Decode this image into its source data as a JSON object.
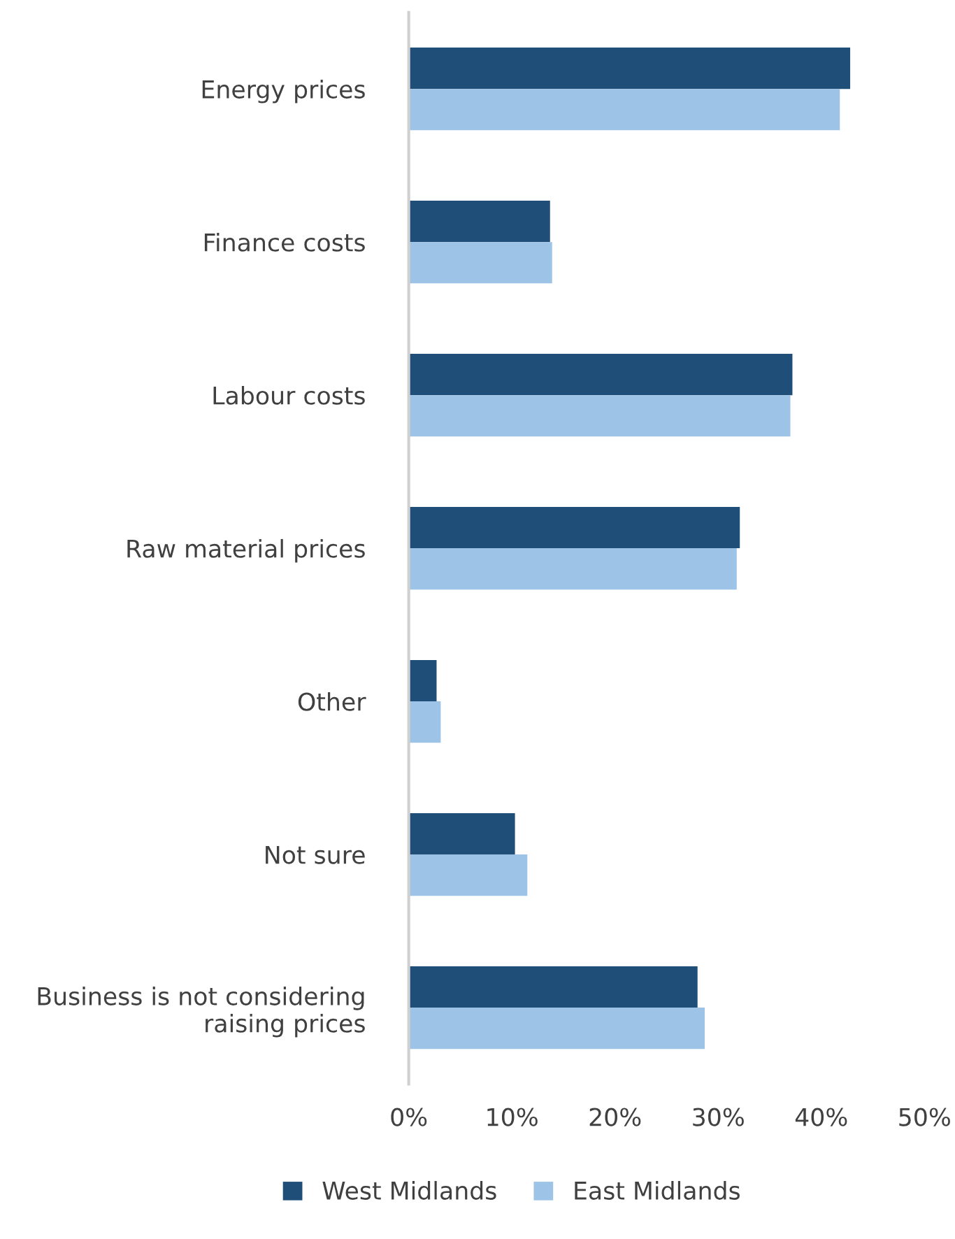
{
  "chart_data": {
    "type": "bar",
    "orientation": "horizontal",
    "categories": [
      "Energy prices",
      "Finance costs",
      "Labour costs",
      "Raw material prices",
      "Other",
      "Not sure",
      "Business is not considering raising prices"
    ],
    "series": [
      {
        "name": "West Midlands",
        "color": "#1f4e79",
        "values": [
          42.8,
          13.7,
          37.2,
          32.1,
          2.7,
          10.3,
          28.0
        ]
      },
      {
        "name": "East Midlands",
        "color": "#9dc3e6",
        "values": [
          41.8,
          13.9,
          37.0,
          31.8,
          3.1,
          11.5,
          28.7
        ]
      }
    ],
    "xlim": [
      0,
      50
    ],
    "xticks": [
      {
        "value": 0,
        "label": "0%"
      },
      {
        "value": 10,
        "label": "10%"
      },
      {
        "value": 20,
        "label": "20%"
      },
      {
        "value": 30,
        "label": "30%"
      },
      {
        "value": 40,
        "label": "40%"
      },
      {
        "value": 50,
        "label": "50%"
      }
    ],
    "grid": false,
    "legend": "bottom"
  }
}
